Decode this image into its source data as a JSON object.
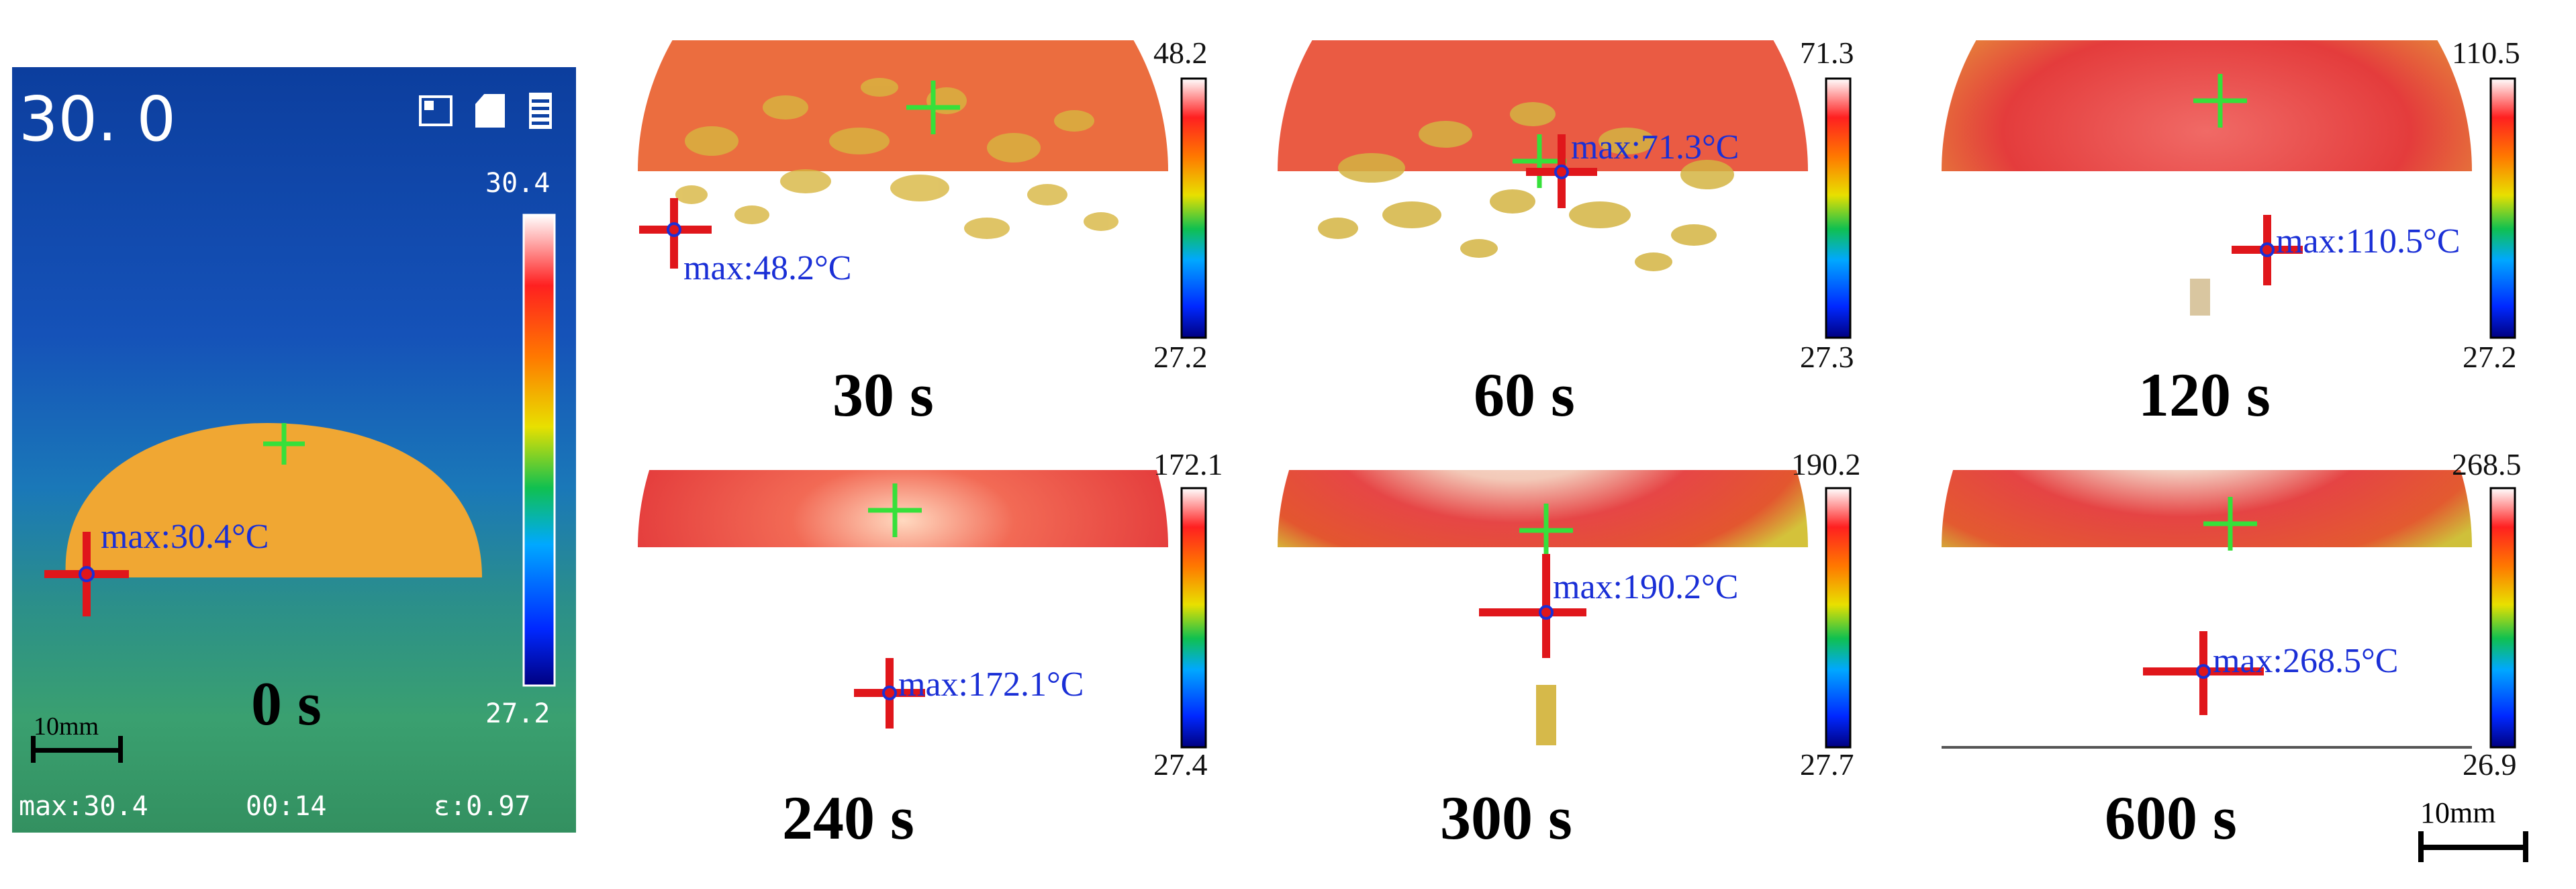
{
  "camera": {
    "temperature_display": "30. 0",
    "scale_max": "30.4",
    "scale_min": "27.2",
    "max_label": "max:30.4°C",
    "time_label": "0 s",
    "scale_bar_label": "10mm",
    "footer_max": "max:30.4",
    "footer_time": "00:14",
    "footer_emissivity": "ε:0.97",
    "icons": [
      "image-mode-icon",
      "sd-card-icon",
      "battery-icon"
    ]
  },
  "panels": [
    {
      "time": "30 s",
      "cbar_max": "48.2",
      "cbar_min": "27.2",
      "max_label": "max:48.2°C"
    },
    {
      "time": "60 s",
      "cbar_max": "71.3",
      "cbar_min": "27.3",
      "max_label": "max:71.3°C"
    },
    {
      "time": "120 s",
      "cbar_max": "110.5",
      "cbar_min": "27.2",
      "max_label": "max:110.5°C"
    },
    {
      "time": "240 s",
      "cbar_max": "172.1",
      "cbar_min": "27.4",
      "max_label": "max:172.1°C"
    },
    {
      "time": "300 s",
      "cbar_max": "190.2",
      "cbar_min": "27.7",
      "max_label": "max:190.2°C"
    },
    {
      "time": "600 s",
      "cbar_max": "268.5",
      "cbar_min": "26.9",
      "max_label": "max:268.5°C"
    }
  ],
  "scale_bar_label": "10mm",
  "colors": {
    "max_text": "#1a2fd6",
    "crosshair_red": "#e0161b",
    "crosshair_green": "#36e03a"
  }
}
